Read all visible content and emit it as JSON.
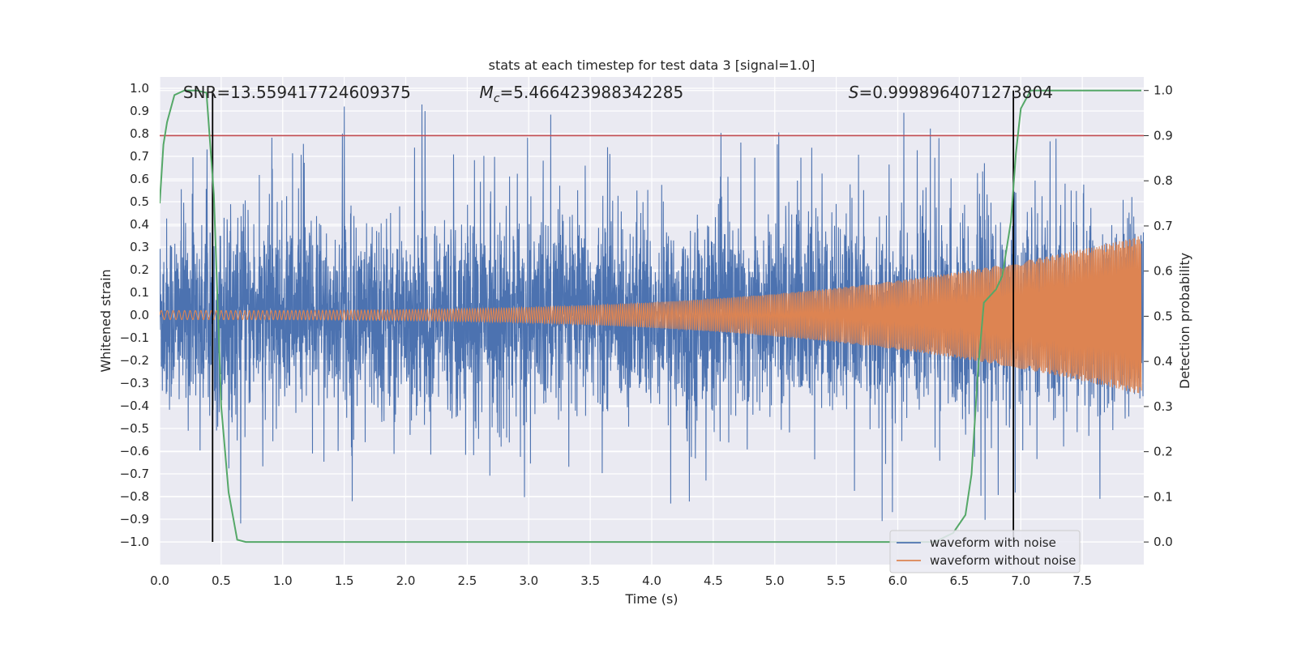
{
  "chart_data": {
    "type": "line",
    "title": "stats at each timestep for test data 3 [signal=1.0]",
    "xlabel": "Time (s)",
    "ylabel_left": "Whitened strain",
    "ylabel_right": "Detection probability",
    "xlim": [
      0.0,
      8.0
    ],
    "ylim_left": [
      -1.1,
      1.05
    ],
    "ylim_right": [
      -0.05,
      1.03
    ],
    "x_ticks": [
      0.0,
      0.5,
      1.0,
      1.5,
      2.0,
      2.5,
      3.0,
      3.5,
      4.0,
      4.5,
      5.0,
      5.5,
      6.0,
      6.5,
      7.0,
      7.5
    ],
    "y_ticks_left": [
      -1.0,
      -0.9,
      -0.8,
      -0.7,
      -0.6,
      -0.5,
      -0.4,
      -0.3,
      -0.2,
      -0.1,
      0.0,
      0.1,
      0.2,
      0.3,
      0.4,
      0.5,
      0.6,
      0.7,
      0.8,
      0.9,
      1.0
    ],
    "y_ticks_right": [
      0.0,
      0.1,
      0.2,
      0.3,
      0.4,
      0.5,
      0.6,
      0.7,
      0.8,
      0.9,
      1.0
    ],
    "annotations": {
      "snr": {
        "prefix": "SNR",
        "value": "=13.559417724609375",
        "x_data": 0.19
      },
      "mc": {
        "prefix": "M",
        "sub": "c",
        "value": "=5.466423988342285",
        "x_data": 2.6
      },
      "s": {
        "prefix": "S",
        "value": "=0.9998964071273804",
        "x_data": 5.6
      }
    },
    "vertical_lines": [
      0.43,
      6.94
    ],
    "threshold_line": {
      "right_axis_value": 0.9,
      "color": "#c44e52"
    },
    "series": [
      {
        "name": "waveform with noise",
        "axis": "left",
        "color": "#4c72b0",
        "description": "noisy whitened strain, amplitude ~0.3 std with spikes up to 0.95 and down to -1.0",
        "noise_envelope_max": 0.95,
        "noise_envelope_min": -1.0
      },
      {
        "name": "waveform without noise",
        "axis": "left",
        "color": "#dd8452",
        "chirp": {
          "start_amp": 0.02,
          "end_amp": 0.35,
          "start_freq_hz": 20,
          "end_freq_hz": 60,
          "t_end": 7.98
        }
      },
      {
        "name": "detection probability",
        "axis": "right",
        "color": "#55a868",
        "x": [
          0.0,
          0.03,
          0.06,
          0.12,
          0.2,
          0.3,
          0.38,
          0.44,
          0.5,
          0.56,
          0.63,
          0.7,
          1.0,
          2.0,
          3.0,
          4.0,
          5.0,
          6.0,
          6.3,
          6.45,
          6.55,
          6.6,
          6.65,
          6.7,
          6.8,
          6.85,
          6.92,
          6.96,
          7.0,
          7.08,
          7.2,
          7.98
        ],
        "values": [
          0.75,
          0.88,
          0.93,
          0.99,
          1.0,
          1.0,
          0.995,
          0.77,
          0.3,
          0.11,
          0.005,
          0.0,
          0.0,
          0.0,
          0.0,
          0.0,
          0.0,
          0.0,
          0.0,
          0.02,
          0.06,
          0.15,
          0.37,
          0.53,
          0.56,
          0.59,
          0.71,
          0.86,
          0.96,
          1.0,
          1.0,
          1.0
        ]
      }
    ],
    "legend": {
      "position": "lower-right",
      "entries": [
        {
          "label": "waveform with noise",
          "color": "#4c72b0"
        },
        {
          "label": "waveform without noise",
          "color": "#dd8452"
        }
      ]
    },
    "grid": true
  },
  "colors": {
    "background": "#eaeaf2",
    "grid": "#ffffff",
    "vline": "#000000"
  }
}
